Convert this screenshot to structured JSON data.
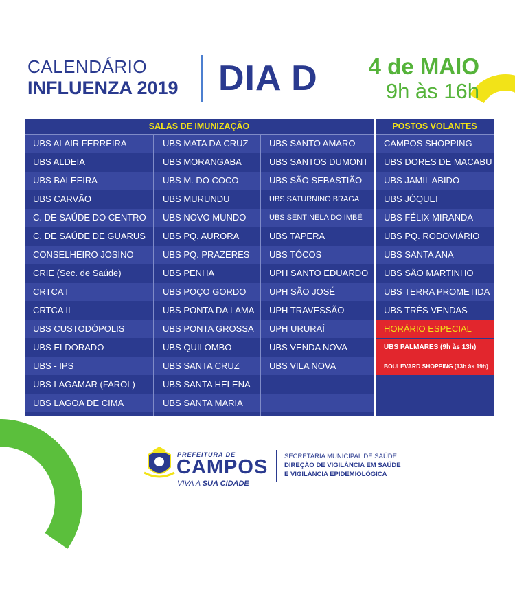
{
  "header": {
    "title_line1": "CALENDÁRIO",
    "title_line2": "INFLUENZA 2019",
    "event": "DIA D",
    "date": "4 de MAIO",
    "time": "9h às 16h"
  },
  "table": {
    "header_left": "SALAS DE IMUNIZAÇÃO",
    "header_right": "POSTOS VOLANTES",
    "col1": [
      "UBS ALAIR FERREIRA",
      "UBS ALDEIA",
      "UBS BALEEIRA",
      "UBS CARVÃO",
      "C. DE SAÚDE DO CENTRO",
      "C. DE SAÚDE DE GUARUS",
      "CONSELHEIRO JOSINO",
      "CRIE (Sec. de Saúde)",
      "CRTCA I",
      "CRTCA II",
      "UBS CUSTODÓPOLIS",
      "UBS ELDORADO",
      "UBS - IPS",
      "UBS LAGAMAR (FAROL)",
      "UBS LAGOA DE CIMA"
    ],
    "col2": [
      "UBS MATA DA CRUZ",
      "UBS MORANGABA",
      "UBS M. DO COCO",
      "UBS MURUNDU",
      "UBS NOVO MUNDO",
      "UBS PQ. AURORA",
      "UBS PQ. PRAZERES",
      "UBS PENHA",
      "UBS POÇO GORDO",
      "UBS PONTA DA LAMA",
      "UBS PONTA GROSSA",
      "UBS QUILOMBO",
      "UBS SANTA CRUZ",
      "UBS SANTA HELENA",
      "UBS SANTA MARIA"
    ],
    "col3": [
      "UBS SANTO AMARO",
      "UBS SANTOS DUMONT",
      "UBS SÃO SEBASTIÃO",
      "UBS SATURNINO BRAGA",
      "UBS SENTINELA DO IMBÉ",
      "UBS TAPERA",
      "UBS TÓCOS",
      "UPH SANTO EDUARDO",
      "UPH SÃO JOSÉ",
      "UPH TRAVESSÃO",
      "UPH URURAÍ",
      "UBS VENDA NOVA",
      "UBS VILA NOVA",
      "",
      ""
    ],
    "col4": [
      "CAMPOS SHOPPING",
      "UBS DORES DE MACABU",
      "UBS JAMIL ABIDO",
      "UBS JÓQUEI",
      "UBS FÉLIX MIRANDA",
      "UBS PQ. RODOVIÁRIO",
      "UBS SANTA ANA",
      "UBS SÃO MARTINHO",
      "UBS TERRA PROMETIDA",
      "UBS TRÊS VENDAS"
    ],
    "special_header": "HORÁRIO ESPECIAL",
    "special_items": [
      "UBS PALMARES (9h às 13h)",
      "BOULEVARD SHOPPING (13h às 19h)"
    ]
  },
  "footer": {
    "prefeitura": "PREFEITURA DE",
    "campos": "CAMPOS",
    "viva_a": "VIVA A",
    "sua_cidade": "SUA CIDADE",
    "sec_line1": "SECRETARIA MUNICIPAL DE SAÚDE",
    "sec_line2": "DIREÇÃO DE VIGILÂNCIA EM SAÚDE",
    "sec_line3": "E VIGILÂNCIA EPIDEMIOLÓGICA"
  },
  "colors": {
    "navy": "#2b3a8f",
    "yellow": "#f2e318",
    "green": "#55b33a",
    "red": "#e2262d"
  }
}
